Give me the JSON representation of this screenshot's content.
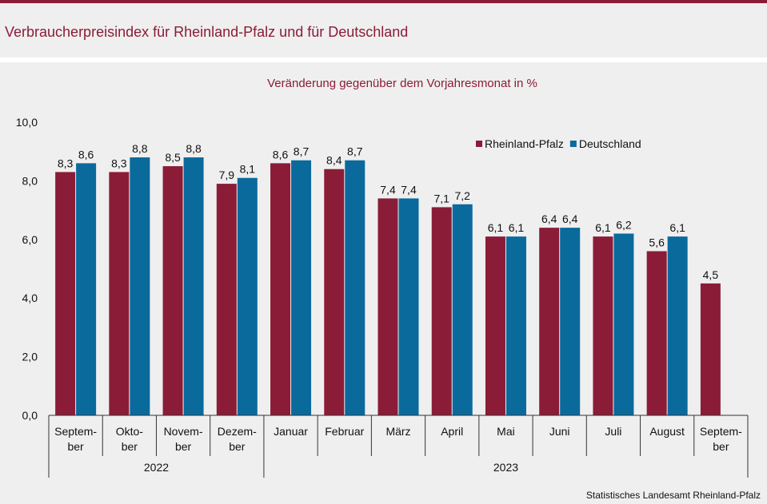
{
  "header": {
    "title": "Verbraucherpreisindex für Rheinland-Pfalz und für Deutschland"
  },
  "footer": {
    "source": "Statistisches Landesamt  Rheinland-Pfalz"
  },
  "colors": {
    "accent": "#8b1c37",
    "rheinland_pfalz": "#8b1c37",
    "deutschland": "#0a6a9c",
    "background": "#efefef"
  },
  "chart_data": {
    "type": "bar",
    "title": "Veränderung  gegenüber  dem  Vorjahresmonat  in %",
    "xlabel": "",
    "ylabel": "",
    "ylim": [
      0,
      10
    ],
    "yticks": [
      "0,0",
      "2,0",
      "4,0",
      "6,0",
      "8,0",
      "10,0"
    ],
    "grid": false,
    "legend_position": "top-right",
    "categories": [
      [
        "Septem-",
        "ber"
      ],
      [
        "Okto-",
        "ber"
      ],
      [
        "Novem-",
        "ber"
      ],
      [
        "Dezem-",
        "ber"
      ],
      [
        "Januar"
      ],
      [
        "Februar"
      ],
      [
        "März"
      ],
      [
        "April"
      ],
      [
        "Mai"
      ],
      [
        "Juni"
      ],
      [
        "Juli"
      ],
      [
        "August"
      ],
      [
        "Septem-",
        "ber"
      ]
    ],
    "year_groups": [
      {
        "label": "2022",
        "count": 4
      },
      {
        "label": "2023",
        "count": 9
      }
    ],
    "series": [
      {
        "name": "Rheinland-Pfalz",
        "values": [
          8.3,
          8.3,
          8.5,
          7.9,
          8.6,
          8.4,
          7.4,
          7.1,
          6.1,
          6.4,
          6.1,
          5.6,
          4.5
        ],
        "labels": [
          "8,3",
          "8,3",
          "8,5",
          "7,9",
          "8,6",
          "8,4",
          "7,4",
          "7,1",
          "6,1",
          "6,4",
          "6,1",
          "5,6",
          "4,5"
        ]
      },
      {
        "name": "Deutschland",
        "values": [
          8.6,
          8.8,
          8.8,
          8.1,
          8.7,
          8.7,
          7.4,
          7.2,
          6.1,
          6.4,
          6.2,
          6.1,
          null
        ],
        "labels": [
          "8,6",
          "8,8",
          "8,8",
          "8,1",
          "8,7",
          "8,7",
          "7,4",
          "7,2",
          "6,1",
          "6,4",
          "6,2",
          "6,1",
          ""
        ]
      }
    ]
  }
}
